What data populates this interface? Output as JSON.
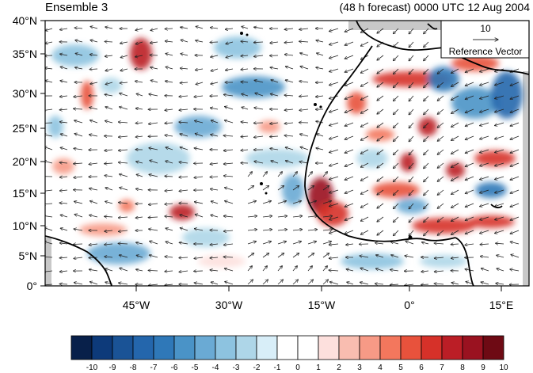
{
  "figure": {
    "title_left": "Ensemble 3",
    "title_right": "(48 h forecast) 0000 UTC 12 Aug 2004"
  },
  "map": {
    "lat_labels": [
      "40°N",
      "35°N",
      "30°N",
      "25°N",
      "20°N",
      "15°N",
      "10°N",
      "5°N",
      "0°"
    ],
    "lon_labels": [
      "45°W",
      "30°W",
      "15°W",
      "0°",
      "15°E"
    ],
    "colors": {
      "land_gray": "#c8c8c8",
      "coast": "#000000"
    }
  },
  "reference_vector": {
    "value": "10",
    "label": "Reference Vector"
  },
  "colorbar": {
    "labels": [
      "-10",
      "-9",
      "-8",
      "-7",
      "-6",
      "-5",
      "-4",
      "-3",
      "-2",
      "-1",
      "0",
      "1",
      "2",
      "3",
      "4",
      "5",
      "6",
      "7",
      "8",
      "9",
      "10"
    ],
    "colors": [
      "#08204a",
      "#0d3a7a",
      "#1a5396",
      "#2466ac",
      "#2f78b8",
      "#4a93c7",
      "#6aaad4",
      "#8dc3e0",
      "#aed6e8",
      "#d8eef8",
      "#ffffff",
      "#ffffff",
      "#fde0dd",
      "#f9bdb0",
      "#f79a86",
      "#f3775d",
      "#e8523c",
      "#d63129",
      "#bb1e26",
      "#9a1220",
      "#6e0a14"
    ]
  }
}
